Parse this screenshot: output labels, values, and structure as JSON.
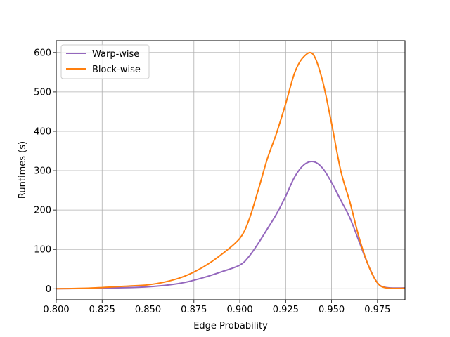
{
  "chart_data": {
    "type": "line",
    "title": "",
    "xlabel": "Edge Probability",
    "ylabel": "Runtimes (s)",
    "xlim": [
      0.8,
      0.99
    ],
    "ylim": [
      -28,
      630
    ],
    "xticks": [
      "0.800",
      "0.825",
      "0.850",
      "0.875",
      "0.900",
      "0.925",
      "0.950",
      "0.975"
    ],
    "yticks": [
      "0",
      "100",
      "200",
      "300",
      "400",
      "500",
      "600"
    ],
    "grid": true,
    "legend_position": "upper-left",
    "series": [
      {
        "name": "Warp-wise",
        "color": "#9467bd",
        "x": [
          0.8,
          0.82,
          0.84,
          0.85,
          0.86,
          0.87,
          0.88,
          0.89,
          0.9,
          0.905,
          0.91,
          0.915,
          0.92,
          0.925,
          0.93,
          0.935,
          0.94,
          0.945,
          0.95,
          0.955,
          0.96,
          0.965,
          0.97,
          0.975,
          0.98,
          0.99
        ],
        "y": [
          0,
          1,
          3,
          5,
          9,
          16,
          28,
          43,
          60,
          82,
          115,
          152,
          190,
          235,
          285,
          315,
          323,
          307,
          270,
          225,
          180,
          120,
          60,
          15,
          3,
          2
        ]
      },
      {
        "name": "Block-wise",
        "color": "#ff7f0e",
        "x": [
          0.8,
          0.82,
          0.84,
          0.85,
          0.86,
          0.87,
          0.88,
          0.89,
          0.9,
          0.905,
          0.91,
          0.915,
          0.92,
          0.925,
          0.93,
          0.935,
          0.94,
          0.945,
          0.95,
          0.955,
          0.96,
          0.965,
          0.97,
          0.975,
          0.98,
          0.99
        ],
        "y": [
          0,
          2,
          7,
          10,
          18,
          32,
          55,
          87,
          128,
          175,
          250,
          330,
          395,
          470,
          550,
          590,
          595,
          530,
          420,
          300,
          220,
          130,
          60,
          15,
          2,
          1
        ]
      }
    ]
  }
}
